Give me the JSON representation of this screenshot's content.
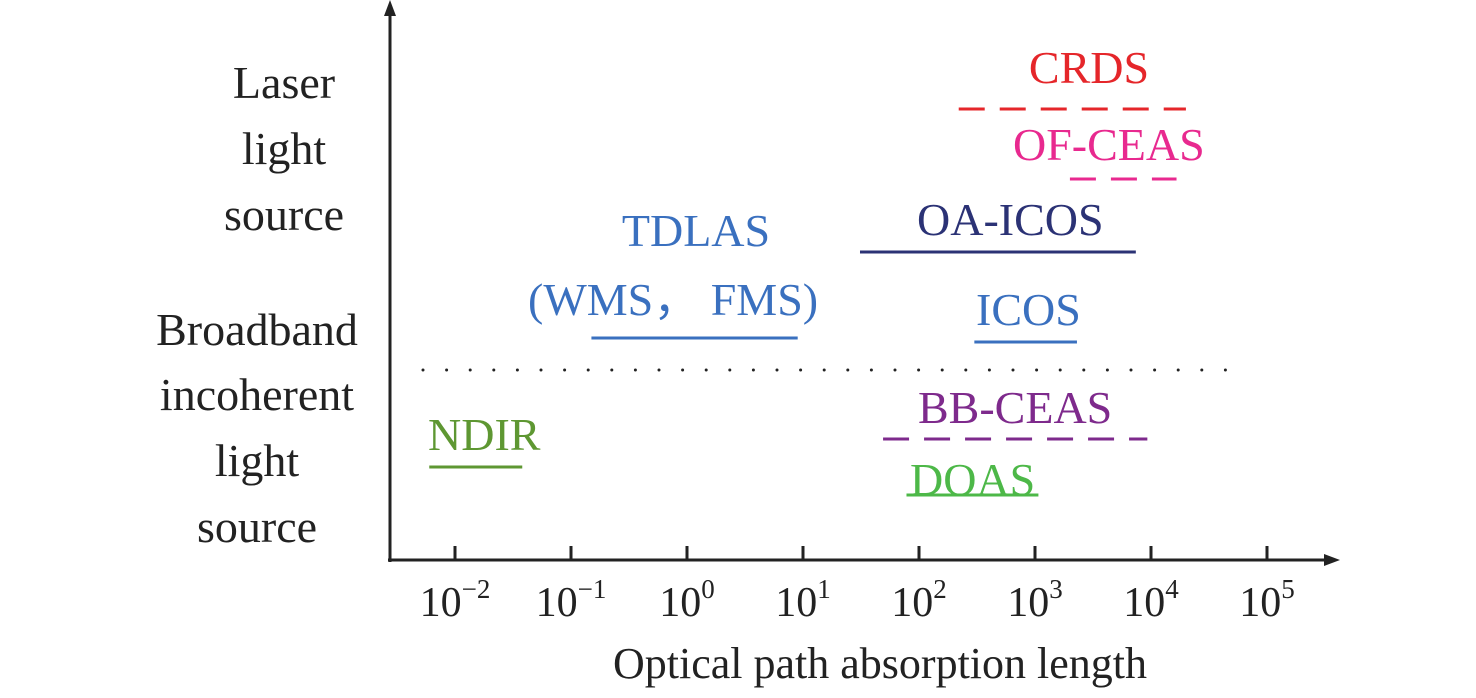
{
  "chart_data": {
    "type": "range-diagram",
    "xlabel": "Optical path absorption length",
    "x_scale": "log",
    "xlim": [
      0.003,
      300000
    ],
    "x_ticks": [
      {
        "base": "10",
        "exp": "−2",
        "value": 0.01
      },
      {
        "base": "10",
        "exp": "−1",
        "value": 0.1
      },
      {
        "base": "10",
        "exp": "0",
        "value": 1
      },
      {
        "base": "10",
        "exp": "1",
        "value": 10
      },
      {
        "base": "10",
        "exp": "2",
        "value": 100
      },
      {
        "base": "10",
        "exp": "3",
        "value": 1000
      },
      {
        "base": "10",
        "exp": "4",
        "value": 10000
      },
      {
        "base": "10",
        "exp": "5",
        "value": 100000
      }
    ],
    "categories": [
      {
        "lines": [
          "Laser",
          "light",
          "source"
        ]
      },
      {
        "lines": [
          "Broadband",
          "incoherent",
          "light",
          "source"
        ]
      }
    ],
    "separator": "dotted",
    "techniques": [
      {
        "label": "CRDS",
        "range": [
          220,
          20000
        ],
        "style": "dashed",
        "color": "#e5262a",
        "group": "laser"
      },
      {
        "label": "OF-CEAS",
        "range": [
          2000,
          16600
        ],
        "style": "dashed",
        "color": "#e8298f",
        "group": "laser"
      },
      {
        "label": "OA-ICOS",
        "range": [
          31,
          7400
        ],
        "style": "solid",
        "color": "#2b3275",
        "group": "laser"
      },
      {
        "label": "TDLAS",
        "label2": "(WMS， FMS)",
        "range": [
          0.15,
          9
        ],
        "style": "solid",
        "color": "#3a70bf",
        "group": "laser"
      },
      {
        "label": "ICOS",
        "range": [
          300,
          2300
        ],
        "style": "solid",
        "color": "#3a70bf",
        "group": "laser"
      },
      {
        "label": "BB-CEAS",
        "range": [
          49,
          9300
        ],
        "style": "dashed",
        "color": "#7e2a8c",
        "group": "broadband"
      },
      {
        "label": "NDIR",
        "range": [
          0.006,
          0.038
        ],
        "style": "solid",
        "color": "#5e9732",
        "group": "broadband"
      },
      {
        "label": "DOAS",
        "range": [
          78,
          1070
        ],
        "style": "solid",
        "color": "#4db848",
        "group": "broadband"
      }
    ]
  }
}
